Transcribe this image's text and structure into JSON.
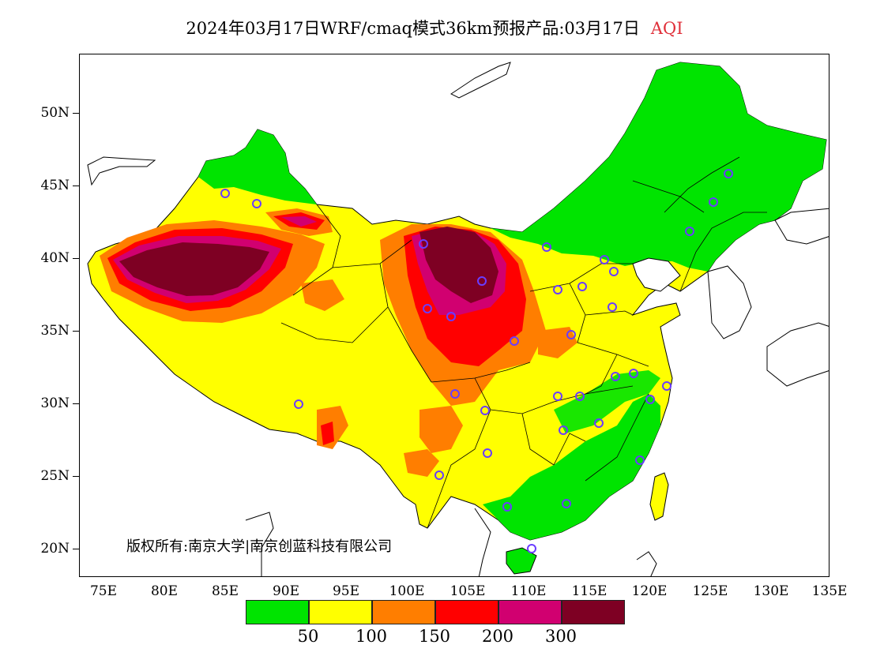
{
  "title": {
    "text": "2024年03月17日WRF/cmaq模式36km预报产品:03月17日",
    "product": "AQI"
  },
  "map": {
    "y_axis_labels": [
      "50N",
      "45N",
      "40N",
      "35N",
      "30N",
      "25N",
      "20N"
    ],
    "x_axis_labels": [
      "75E",
      "80E",
      "85E",
      "90E",
      "95E",
      "100E",
      "105E",
      "110E",
      "115E",
      "120E",
      "125E",
      "130E",
      "135E"
    ],
    "lon_range": [
      73,
      135
    ],
    "lat_range": [
      18,
      54
    ],
    "copyright": "版权所有:南京大学|南京创蓝科技有限公司"
  },
  "legend": {
    "colors": [
      "#00e400",
      "#ffff00",
      "#ff7e00",
      "#ff0000",
      "#d10070",
      "#7e0023"
    ],
    "labels": [
      "50",
      "100",
      "150",
      "200",
      "300"
    ]
  }
}
